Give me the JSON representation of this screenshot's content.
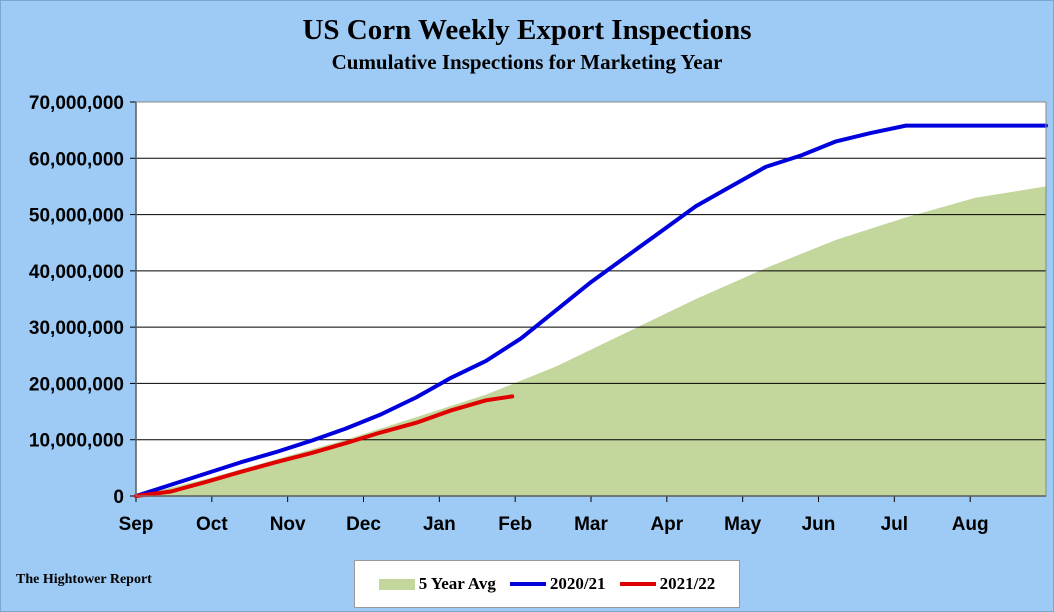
{
  "title": "US Corn Weekly Export Inspections",
  "subtitle": "Cumulative  Inspections for Marketing Year",
  "source": "The Hightower Report",
  "colors": {
    "plot_bg": "#ffffff",
    "page_bg": "#9ecbf5",
    "five_year_avg": "#c3d69b",
    "y2020_21": "#0000dd",
    "y2021_22": "#e00000"
  },
  "chart_data": {
    "type": "line",
    "title": "US Corn Weekly Export Inspections",
    "subtitle": "Cumulative  Inspections for Marketing Year",
    "xlabel": "",
    "ylabel": "",
    "categories": [
      "Sep",
      "Oct",
      "Nov",
      "Dec",
      "Jan",
      "Feb",
      "Mar",
      "Apr",
      "May",
      "Jun",
      "Jul",
      "Aug"
    ],
    "y_ticks": [
      "0",
      "10,000,000",
      "20,000,000",
      "30,000,000",
      "40,000,000",
      "50,000,000",
      "60,000,000",
      "70,000,000"
    ],
    "ylim": [
      0,
      70000000
    ],
    "xlim": [
      0,
      52
    ],
    "grid": "horizontal",
    "legend": "bottom",
    "series": [
      {
        "name": "5 Year Avg",
        "kind": "area",
        "x": [
          0,
          4,
          8,
          12,
          16,
          20,
          24,
          28,
          32,
          36,
          40,
          44,
          48,
          52
        ],
        "values": [
          0,
          3000000,
          6500000,
          10000000,
          14000000,
          18000000,
          23000000,
          29000000,
          35000000,
          40500000,
          45500000,
          49500000,
          53000000,
          55000000
        ]
      },
      {
        "name": "2020/21",
        "kind": "line",
        "x": [
          0,
          2,
          4,
          6,
          8,
          10,
          12,
          14,
          16,
          18,
          20,
          22,
          24,
          26,
          28,
          30,
          32,
          34,
          36,
          38,
          40,
          42,
          44,
          46,
          48,
          50,
          52
        ],
        "values": [
          0,
          2000000,
          4000000,
          6000000,
          7800000,
          9800000,
          12000000,
          14500000,
          17500000,
          21000000,
          24000000,
          28000000,
          33000000,
          38000000,
          42500000,
          47000000,
          51500000,
          55000000,
          58500000,
          60500000,
          63000000,
          64500000,
          65800000,
          65800000,
          65800000,
          65800000,
          65800000
        ]
      },
      {
        "name": "2021/22",
        "kind": "line",
        "x": [
          0,
          2,
          4,
          6,
          8,
          10,
          12,
          14,
          16,
          18,
          20,
          21.5
        ],
        "values": [
          0,
          800000,
          2500000,
          4300000,
          6000000,
          7600000,
          9400000,
          11300000,
          13000000,
          15200000,
          17000000,
          17700000
        ]
      }
    ]
  }
}
